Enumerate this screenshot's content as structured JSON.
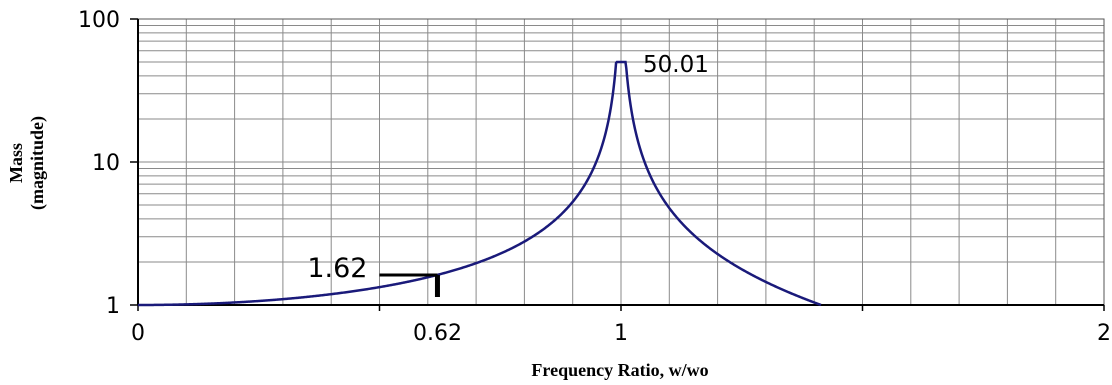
{
  "chart_data": {
    "type": "line",
    "title": "",
    "xlabel": "Frequency Ratio, w/wo",
    "ylabel_line1": "Mass",
    "ylabel_line2": "(magnitude)",
    "xlim": [
      0,
      2
    ],
    "ylim": [
      1,
      100
    ],
    "yscale": "log",
    "grid": true,
    "legend": "none",
    "x_ticks": [
      {
        "value": 0,
        "label": "0"
      },
      {
        "value": 0.62,
        "label": "0.62"
      },
      {
        "value": 1,
        "label": "1"
      },
      {
        "value": 2,
        "label": "2"
      }
    ],
    "y_ticks": [
      {
        "value": 1,
        "label": "1"
      },
      {
        "value": 10,
        "label": "10"
      },
      {
        "value": 100,
        "label": "100"
      }
    ],
    "series": [
      {
        "color": "#1a1a7a",
        "formula": "1/|1-r^2|",
        "x": [
          0,
          0.1,
          0.2,
          0.3,
          0.4,
          0.5,
          0.55,
          0.62,
          0.7,
          0.8,
          0.9,
          0.95,
          0.98,
          0.99,
          1.0,
          1.01,
          1.02,
          1.05,
          1.1,
          1.2,
          1.3,
          1.4,
          1.414
        ],
        "y": [
          1.0,
          1.01,
          1.04,
          1.1,
          1.19,
          1.33,
          1.43,
          1.62,
          1.96,
          2.78,
          5.26,
          10.26,
          25.25,
          50.25,
          50.01,
          49.75,
          24.75,
          9.76,
          4.76,
          2.27,
          1.45,
          1.04,
          1.0
        ]
      }
    ],
    "annotations": [
      {
        "label": "50.01",
        "x": 1.0,
        "y": 50.01
      },
      {
        "label": "1.62",
        "x": 0.62,
        "y": 1.62
      }
    ]
  }
}
